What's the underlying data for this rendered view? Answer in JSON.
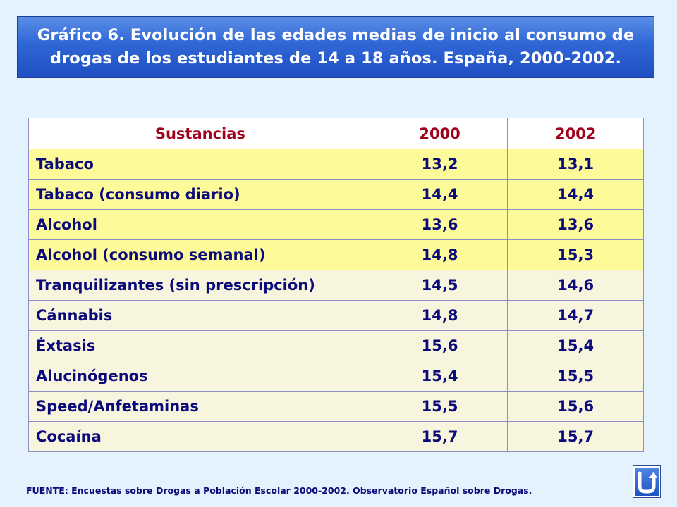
{
  "title": {
    "line1": "Gráfico 6. Evolución de las edades medias de inicio al consumo de",
    "line2": "drogas de los estudiantes de 14 a 18 años. España, 2000-2002."
  },
  "table": {
    "headers": [
      "Sustancias",
      "2000",
      "2002"
    ],
    "rows": [
      {
        "label": "Tabaco",
        "y2000": "13,2",
        "y2002": "13,1"
      },
      {
        "label": "Tabaco (consumo diario)",
        "y2000": "14,4",
        "y2002": "14,4"
      },
      {
        "label": "Alcohol",
        "y2000": "13,6",
        "y2002": "13,6"
      },
      {
        "label": "Alcohol (consumo semanal)",
        "y2000": "14,8",
        "y2002": "15,3"
      },
      {
        "label": "Tranquilizantes (sin prescripción)",
        "y2000": "14,5",
        "y2002": "14,6"
      },
      {
        "label": "Cánnabis",
        "y2000": "14,8",
        "y2002": "14,7"
      },
      {
        "label": "Éxtasis",
        "y2000": "15,6",
        "y2002": "15,4"
      },
      {
        "label": "Alucinógenos",
        "y2000": "15,4",
        "y2002": "15,5"
      },
      {
        "label": "Speed/Anfetaminas",
        "y2000": "15,5",
        "y2002": "15,6"
      },
      {
        "label": "Cocaína",
        "y2000": "15,7",
        "y2002": "15,7"
      }
    ]
  },
  "source": "FUENTE: Encuestas sobre Drogas a Población Escolar 2000-2002.  Observatorio Español sobre Drogas.",
  "nav_button": {
    "icon": "return-arrow-icon"
  },
  "colors": {
    "background": "#e3f2fc",
    "title_bar": "#2f66d6",
    "header_text": "#a1001c",
    "body_text": "#0a0a7a",
    "row_highlight": "#fdfa99",
    "row_light": "#f8f5de"
  }
}
